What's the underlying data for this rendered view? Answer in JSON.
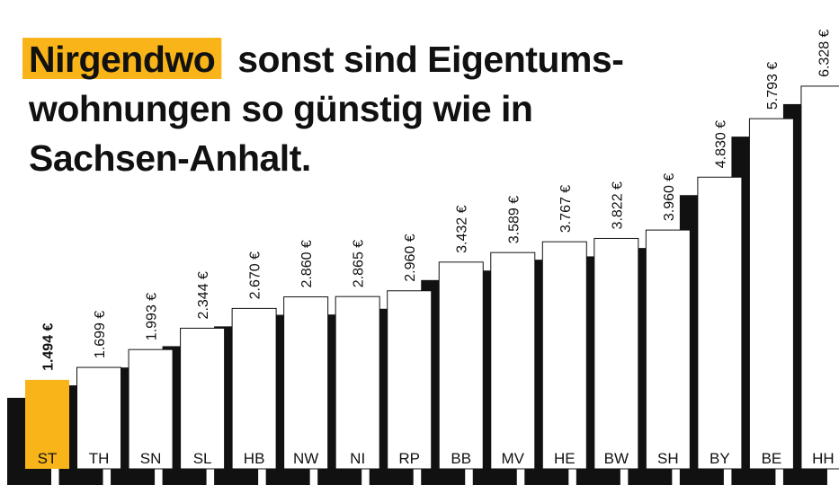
{
  "chart_data": {
    "type": "bar",
    "title": {
      "highlight": "Nirgendwo",
      "lines": [
        "sonst sind Eigentums-",
        "wohnungen so günstig wie in",
        "Sachsen-Anhalt."
      ]
    },
    "categories": [
      "ST",
      "TH",
      "SN",
      "SL",
      "HB",
      "NW",
      "NI",
      "RP",
      "BB",
      "MV",
      "HE",
      "BW",
      "SH",
      "BY",
      "BE",
      "HH"
    ],
    "values": [
      1494,
      1699,
      1993,
      2344,
      2670,
      2860,
      2865,
      2960,
      3432,
      3589,
      3767,
      3822,
      3960,
      4830,
      5793,
      6328
    ],
    "value_labels": [
      "1.494 €",
      "1.699 €",
      "1.993 €",
      "2.344 €",
      "2.670 €",
      "2.860 €",
      "2.865 €",
      "2.960 €",
      "3.432 €",
      "3.589 €",
      "3.767 €",
      "3.822 €",
      "3.960 €",
      "4.830 €",
      "5.793 €",
      "6.328 €"
    ],
    "highlight_index": 0,
    "color": "#ffffff",
    "highlight_color": "#f8b418",
    "shadow_color": "#111111",
    "ylim": [
      0,
      7746
    ]
  }
}
